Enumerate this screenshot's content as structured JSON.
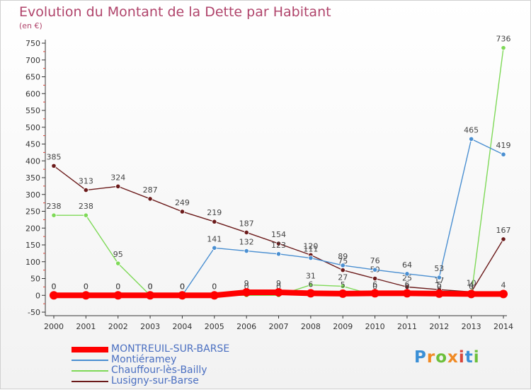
{
  "chart_data": {
    "type": "line",
    "title": "Evolution du Montant de la Dette par Habitant",
    "ylabel": "(en €)",
    "x": [
      "2000",
      "2001",
      "2002",
      "2003",
      "2004",
      "2005",
      "2006",
      "2007",
      "2008",
      "2009",
      "2010",
      "2011",
      "2012",
      "2013",
      "2014"
    ],
    "ylim": [
      -50,
      750
    ],
    "yticks": [
      -50,
      0,
      50,
      100,
      150,
      200,
      250,
      300,
      350,
      400,
      450,
      500,
      550,
      600,
      650,
      700,
      750
    ],
    "grid": false,
    "legend_position": "bottom-left",
    "series": [
      {
        "name": "Lusigny-sur-Barse",
        "color": "#6b1a1a",
        "values": [
          385,
          313,
          324,
          287,
          249,
          219,
          187,
          154,
          120,
          75,
          50,
          25,
          17,
          10,
          167
        ],
        "labels": [
          "385",
          "313",
          "324",
          "287",
          "249",
          "219",
          "187",
          "154",
          "120",
          "75",
          "50",
          "25",
          "17",
          "10",
          "167"
        ]
      },
      {
        "name": "Chauffour-lès-Bailly",
        "color": "#7ed957",
        "values": [
          238,
          238,
          95,
          0,
          0,
          0,
          0,
          0,
          31,
          27,
          0,
          0,
          0,
          0,
          736
        ],
        "labels": [
          "238",
          "238",
          "95",
          "0",
          "0",
          "0",
          "0",
          "0",
          "31",
          "27",
          "0",
          "0",
          "0",
          "0",
          "736"
        ]
      },
      {
        "name": "Montiéramey",
        "color": "#4a8fd1",
        "values": [
          0,
          0,
          0,
          0,
          0,
          141,
          132,
          123,
          111,
          89,
          76,
          64,
          53,
          465,
          419
        ],
        "labels": [
          "0",
          "0",
          "0",
          "0",
          "0",
          "141",
          "132",
          "123",
          "111",
          "89",
          "76",
          "64",
          "53",
          "465",
          "419"
        ]
      },
      {
        "name": "MONTREUIL-SUR-BARSE",
        "color": "#ff0000",
        "values": [
          0,
          0,
          0,
          0,
          0,
          0,
          9,
          9,
          6,
          5,
          6,
          6,
          5,
          4,
          4
        ],
        "labels": [
          "0",
          "0",
          "0",
          "0",
          "0",
          "0",
          "9",
          "9",
          "6",
          "5",
          "6",
          "6",
          "5",
          "4",
          "4"
        ]
      }
    ]
  },
  "legend": {
    "items": [
      {
        "label": "MONTREUIL-SUR-BARSE",
        "color": "#ff0000"
      },
      {
        "label": "Montiéramey",
        "color": "#4a8fd1"
      },
      {
        "label": "Chauffour-lès-Bailly",
        "color": "#7ed957"
      },
      {
        "label": "Lusigny-sur-Barse",
        "color": "#6b1a1a"
      }
    ]
  },
  "logo": {
    "text": "Proxiti"
  }
}
